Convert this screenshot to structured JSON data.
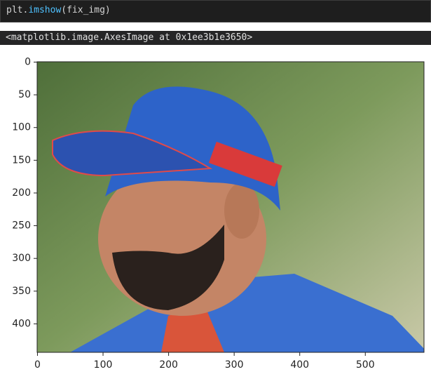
{
  "code": {
    "parts": [
      "plt.",
      "imshow",
      "(fix_img)"
    ]
  },
  "output": "<matplotlib.image.AxesImage at 0x1ee3b1e3650>",
  "chart_data": {
    "type": "image",
    "xlim": [
      -0.5,
      589.5
    ],
    "ylim": [
      443.5,
      -0.5
    ],
    "xticks": [
      0,
      100,
      200,
      300,
      400,
      500
    ],
    "yticks": [
      0,
      50,
      100,
      150,
      200,
      250,
      300,
      350,
      400
    ]
  }
}
